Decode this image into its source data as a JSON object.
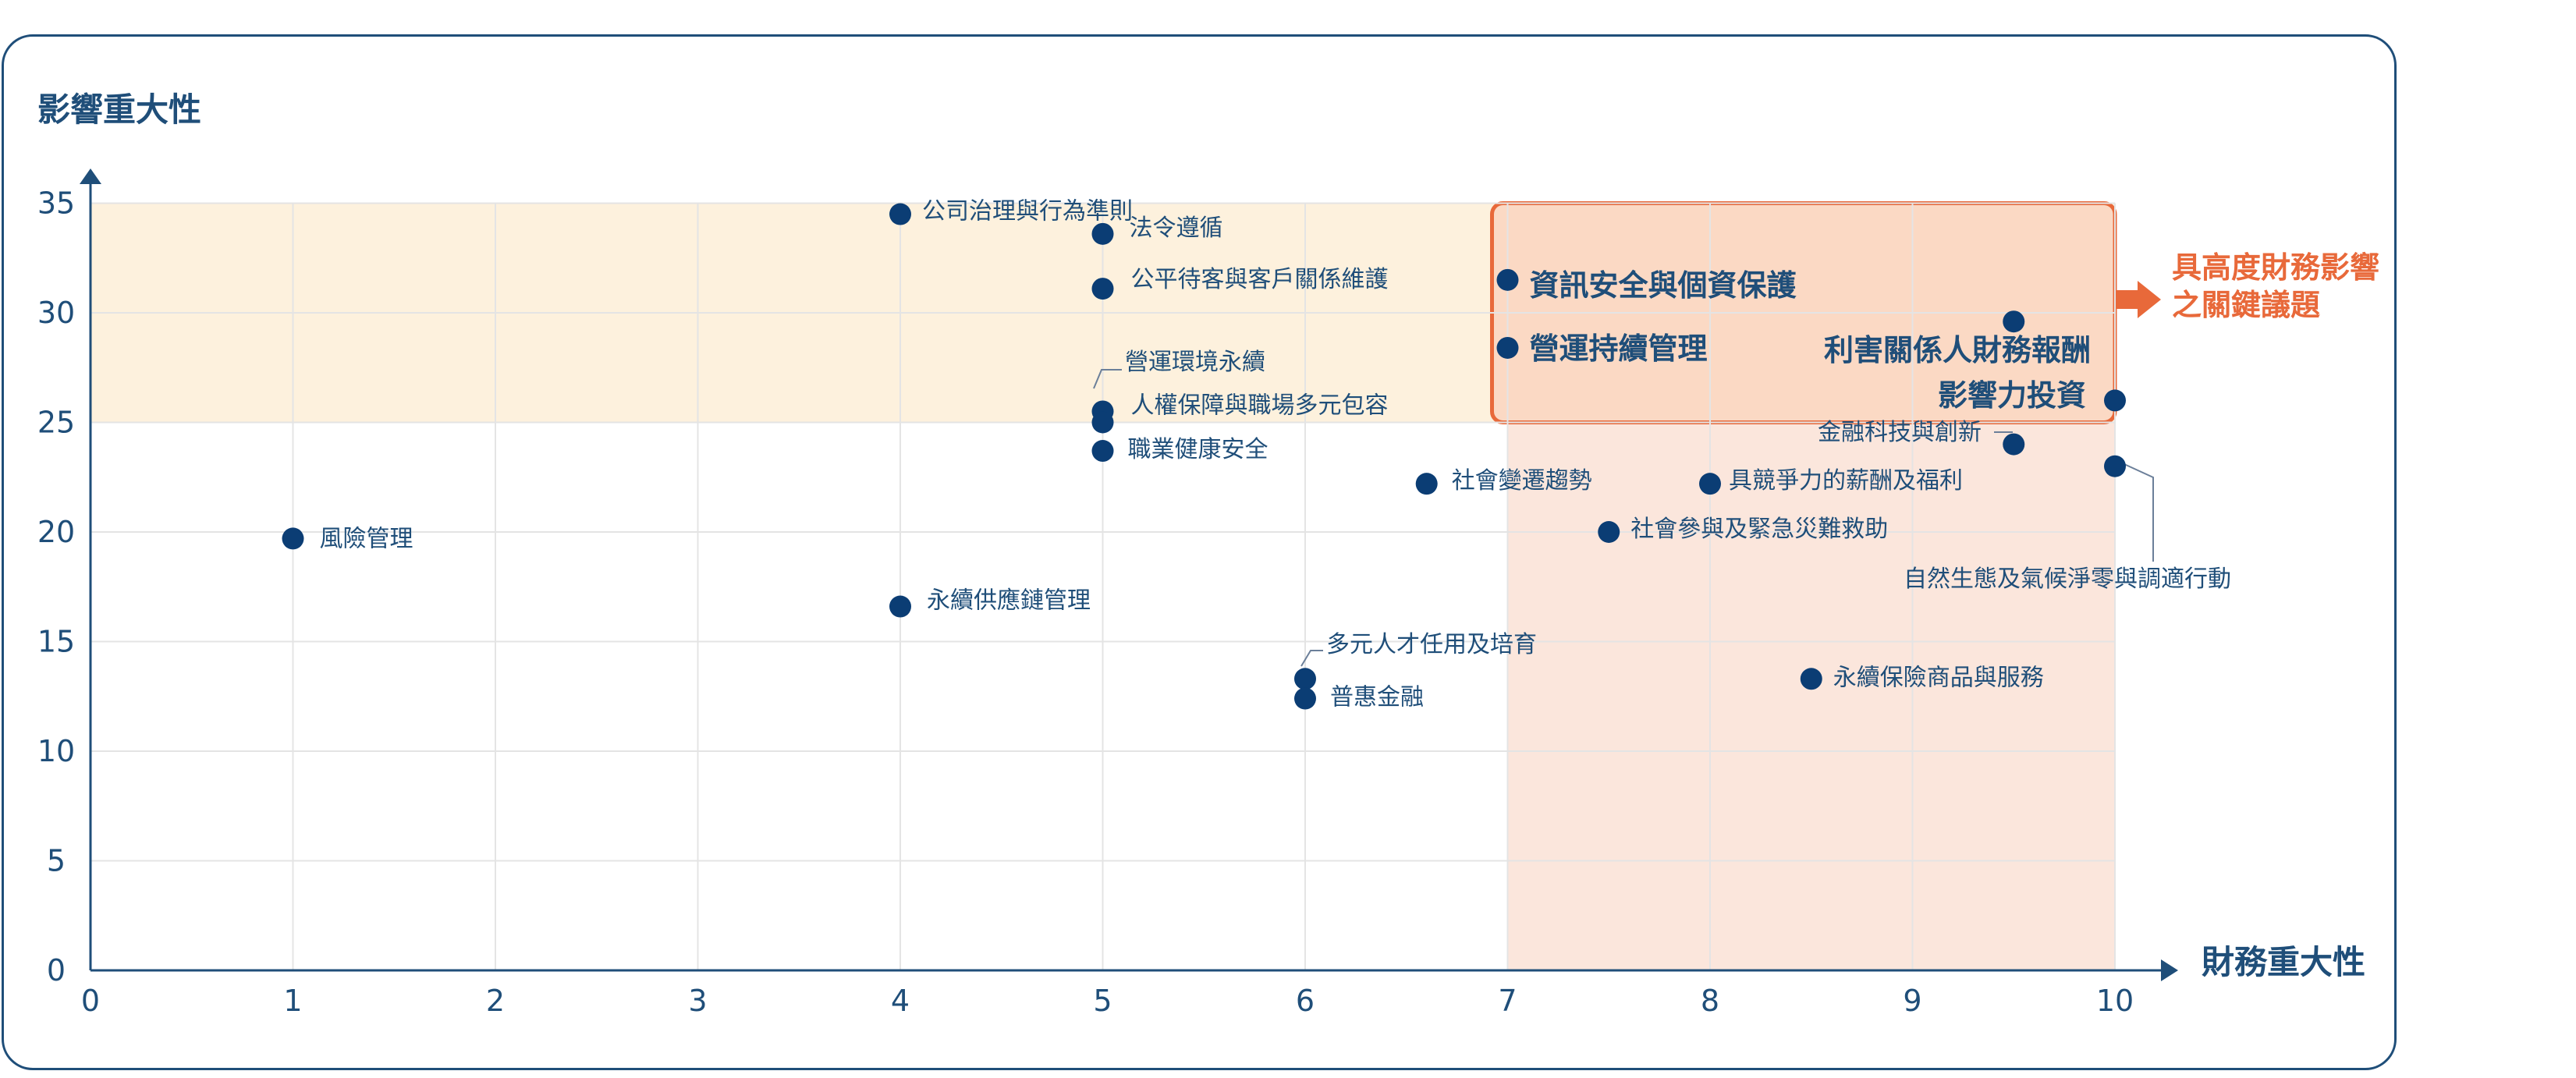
{
  "chart_data": {
    "type": "scatter",
    "xlabel": "財務重大性",
    "ylabel": "影響重大性",
    "xlim": [
      0,
      10
    ],
    "ylim": [
      0,
      35
    ],
    "x_ticks": [
      "0",
      "1",
      "2",
      "3",
      "4",
      "5",
      "6",
      "7",
      "8",
      "9",
      "10"
    ],
    "y_ticks": [
      "0",
      "5",
      "10",
      "15",
      "20",
      "25",
      "30",
      "35"
    ],
    "grid": true,
    "colors": {
      "point": "#0b3d74",
      "axis": "#1f4e79",
      "band": "#fdf1dd",
      "zone": "#fbe6dc",
      "highlight_border": "#e8693a",
      "highlight_fill": "#fbd9c4",
      "callout": "#e8693a"
    },
    "callout": [
      "具高度財務影響",
      "之關鍵議題"
    ],
    "points": [
      {
        "label": "風險管理",
        "x": 1.0,
        "y": 19.7
      },
      {
        "label": "公司治理與行為準則",
        "x": 4.0,
        "y": 34.5
      },
      {
        "label": "永續供應鏈管理",
        "x": 4.0,
        "y": 16.6
      },
      {
        "label": "法令遵循",
        "x": 5.0,
        "y": 33.6
      },
      {
        "label": "公平待客與客戶關係維護",
        "x": 5.0,
        "y": 31.1
      },
      {
        "label": "營運環境永續",
        "x": 5.0,
        "y": 25.5
      },
      {
        "label": "人權保障與職場多元包容",
        "x": 5.0,
        "y": 25.0
      },
      {
        "label": "職業健康安全",
        "x": 5.0,
        "y": 23.7
      },
      {
        "label": "多元人才任用及培育",
        "x": 6.0,
        "y": 13.3
      },
      {
        "label": "普惠金融",
        "x": 6.0,
        "y": 12.4
      },
      {
        "label": "社會變遷趨勢",
        "x": 6.6,
        "y": 22.2
      },
      {
        "label": "資訊安全與個資保護",
        "x": 7.0,
        "y": 31.5
      },
      {
        "label": "營運持續管理",
        "x": 7.0,
        "y": 28.4
      },
      {
        "label": "社會參與及緊急災難救助",
        "x": 7.5,
        "y": 20.0
      },
      {
        "label": "具競爭力的薪酬及福利",
        "x": 8.0,
        "y": 22.2
      },
      {
        "label": "永續保險商品與服務",
        "x": 8.5,
        "y": 13.3
      },
      {
        "label": "利害關係人財務報酬",
        "x": 9.5,
        "y": 29.6
      },
      {
        "label": "金融科技與創新",
        "x": 9.5,
        "y": 24.0
      },
      {
        "label": "影響力投資",
        "x": 10.0,
        "y": 26.0
      },
      {
        "label": "自然生態及氣候淨零與調適行動",
        "x": 10.0,
        "y": 23.0
      }
    ]
  }
}
